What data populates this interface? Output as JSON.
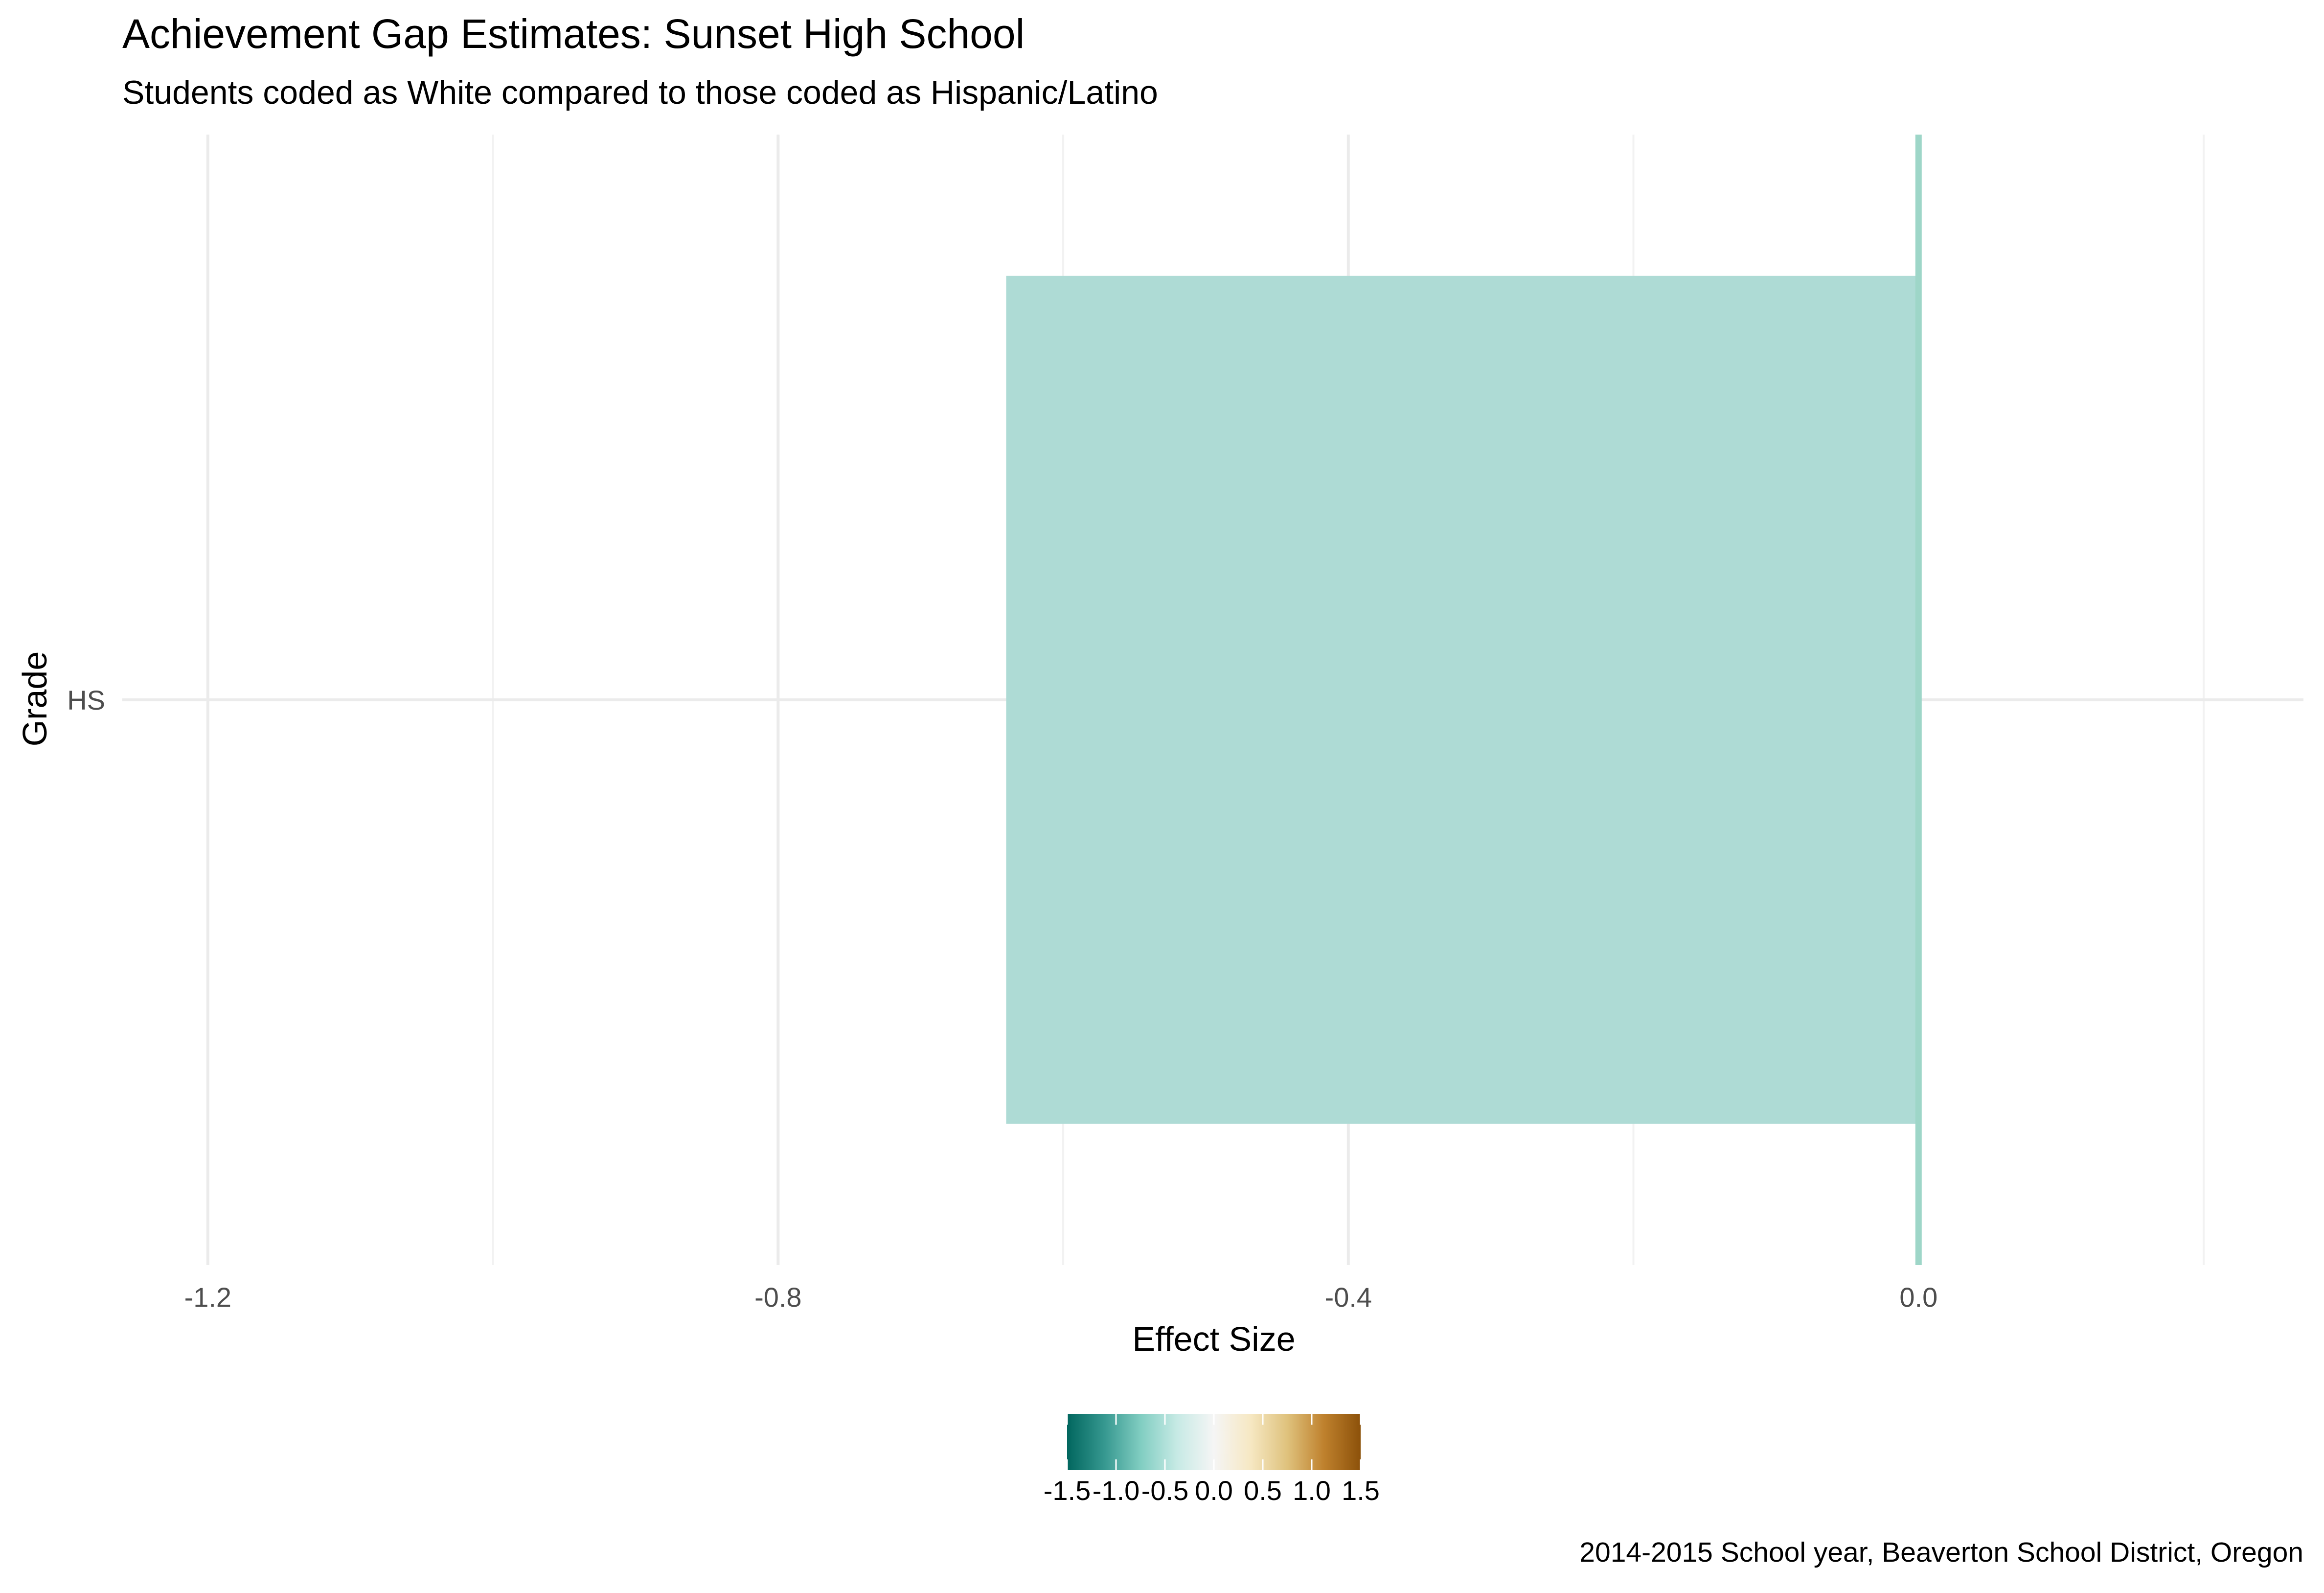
{
  "chart_data": {
    "type": "bar",
    "orientation": "horizontal",
    "title": "Achievement Gap Estimates: Sunset High School",
    "subtitle": "Students coded as White compared to those coded as Hispanic/Latino",
    "xlabel": "Effect Size",
    "ylabel": "Grade",
    "caption": "2014-2015 School year, Beaverton School District, Oregon",
    "categories": [
      "HS"
    ],
    "values": [
      -0.64
    ],
    "xlim": [
      -1.26,
      0.27
    ],
    "x_ticks": [
      -1.2,
      -0.8,
      -0.4,
      0.0
    ],
    "x_tick_labels": [
      "-1.2",
      "-0.8",
      "-0.4",
      "0.0"
    ],
    "reference_line": 0.0,
    "grid": true,
    "bar_color": "#AEDBD5",
    "reference_line_color": "#9ED6C8",
    "legend": {
      "type": "colorbar",
      "placement": "bottom",
      "range": [
        -1.5,
        1.5
      ],
      "ticks": [
        -1.5,
        -1.0,
        -0.5,
        0.0,
        0.5,
        1.0,
        1.5
      ],
      "tick_labels": [
        "-1.5",
        "-1.0",
        "-0.5",
        "0.0",
        "0.5",
        "1.0",
        "1.5"
      ],
      "colors": [
        "#01665E",
        "#35978F",
        "#80CDC1",
        "#C7EAE5",
        "#F5F5F5",
        "#F6E8C3",
        "#DFC27D",
        "#BF812D",
        "#8C510A"
      ]
    }
  }
}
